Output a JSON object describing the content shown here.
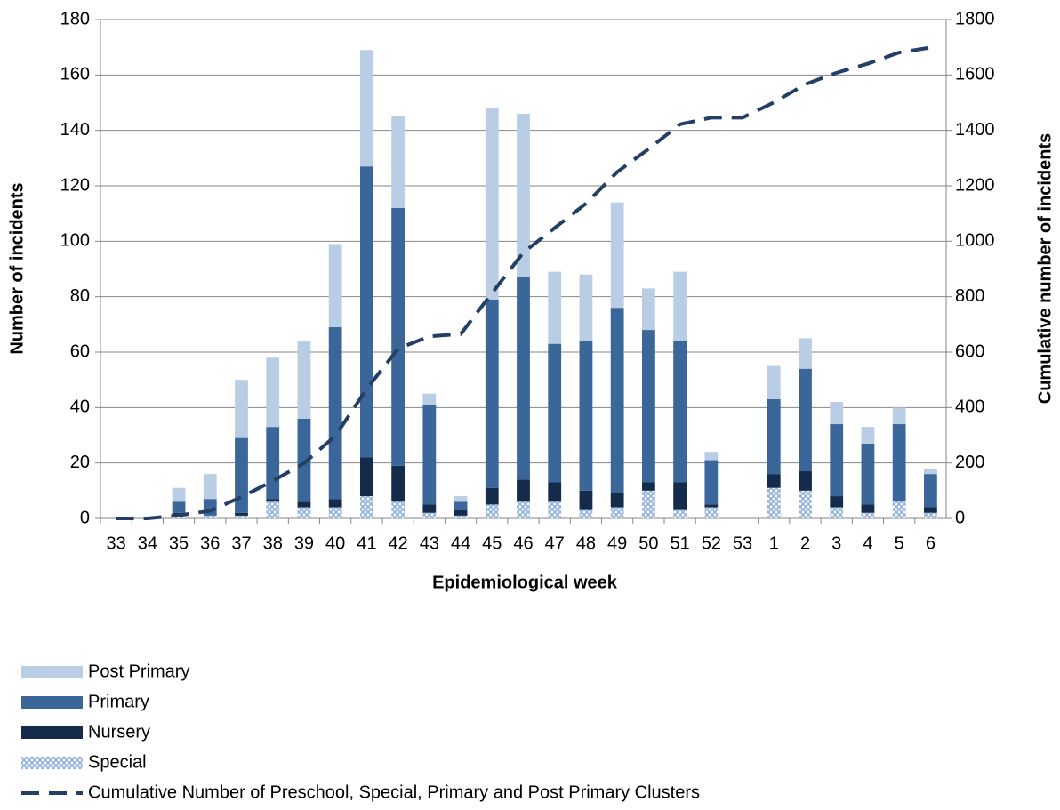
{
  "chart_data": {
    "type": "bar",
    "stacked": true,
    "x_label": "Epidemiological week",
    "y_label": "Number of incidents",
    "y2_label": "Cumulative number of incidents",
    "categories": [
      "33",
      "34",
      "35",
      "36",
      "37",
      "38",
      "39",
      "40",
      "41",
      "42",
      "43",
      "44",
      "45",
      "46",
      "47",
      "48",
      "49",
      "50",
      "51",
      "52",
      "53",
      "1",
      "2",
      "3",
      "4",
      "5",
      "6"
    ],
    "ylim": [
      0,
      180
    ],
    "yticks": [
      0,
      20,
      40,
      60,
      80,
      100,
      120,
      140,
      160,
      180
    ],
    "y2lim": [
      0,
      1800
    ],
    "y2ticks": [
      0,
      200,
      400,
      600,
      800,
      1000,
      1200,
      1400,
      1600,
      1800
    ],
    "grid": true,
    "series": [
      {
        "name": "Special",
        "color": "#8fb0dc",
        "pattern": "crosshatch",
        "values": [
          0,
          0,
          1,
          1,
          1,
          6,
          4,
          4,
          8,
          6,
          2,
          1,
          5,
          6,
          6,
          3,
          4,
          10,
          3,
          4,
          0,
          11,
          10,
          4,
          2,
          6,
          2
        ]
      },
      {
        "name": "Nursery",
        "color": "#142b4b",
        "values": [
          0,
          0,
          1,
          0,
          1,
          1,
          2,
          3,
          14,
          13,
          3,
          2,
          6,
          8,
          7,
          7,
          5,
          3,
          10,
          1,
          0,
          5,
          7,
          4,
          3,
          0,
          2
        ]
      },
      {
        "name": "Primary",
        "color": "#3a6699",
        "values": [
          0,
          0,
          4,
          6,
          27,
          26,
          30,
          62,
          105,
          93,
          36,
          3,
          68,
          73,
          50,
          54,
          67,
          55,
          51,
          16,
          0,
          27,
          37,
          26,
          22,
          28,
          12
        ]
      },
      {
        "name": "Post Primary",
        "color": "#b9cde5",
        "values": [
          0,
          0,
          5,
          9,
          21,
          25,
          28,
          30,
          42,
          33,
          4,
          2,
          69,
          59,
          26,
          24,
          38,
          15,
          25,
          3,
          0,
          12,
          11,
          8,
          6,
          6,
          2
        ]
      },
      {
        "name": "Cumulative Number of Preschool, Special, Primary and Post Primary Clusters",
        "type": "line",
        "axis": "y2",
        "color": "#243f66",
        "dashed": true,
        "values": [
          0,
          0,
          11,
          27,
          77,
          135,
          199,
          298,
          467,
          612,
          657,
          665,
          813,
          959,
          1048,
          1136,
          1250,
          1333,
          1422,
          1446,
          1446,
          1501,
          1566,
          1608,
          1641,
          1681,
          1699
        ]
      }
    ],
    "legend_order": [
      3,
      2,
      1,
      0,
      4
    ]
  }
}
